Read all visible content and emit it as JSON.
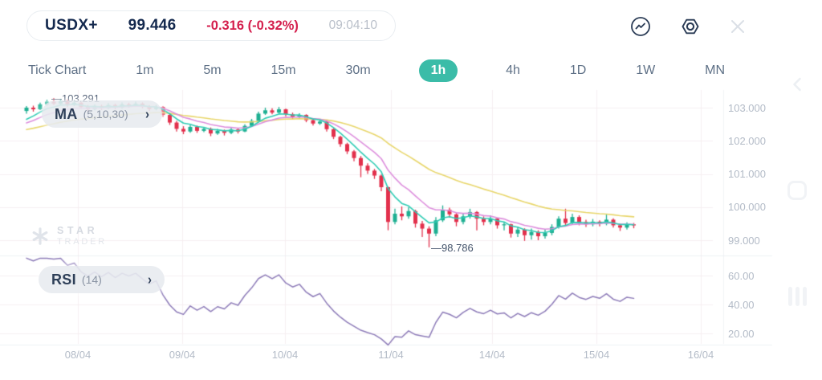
{
  "header": {
    "symbol": "USDX+",
    "price": "99.446",
    "change": "-0.316 (-0.32%)",
    "time": "09:04:10",
    "change_color": "#D41F4D"
  },
  "toolbar": {
    "timeframes": [
      "Tick Chart",
      "1m",
      "5m",
      "15m",
      "30m",
      "1h",
      "4h",
      "1D",
      "1W",
      "MN"
    ],
    "active": "1h",
    "active_color": "#3BBCA8"
  },
  "indicators": {
    "ma": {
      "label": "MA",
      "params": "(5,10,30)",
      "chevron": "›"
    },
    "rsi": {
      "label": "RSI",
      "params": "(14)",
      "chevron": "›"
    }
  },
  "watermark": {
    "line1": "STAR",
    "line2": "TRADER"
  },
  "chart_data": {
    "type": "candlestick",
    "symbol": "USDX+",
    "timeframe": "1h",
    "title": "USDX+ 1h candlestick chart with MA(5,10,30) and RSI(14)",
    "high_label": "—103.291",
    "low_label": "—98.786",
    "high_value": 103.291,
    "low_value": 98.786,
    "price_axis_labels": [
      "103.000",
      "102.000",
      "101.000",
      "100.000",
      "99.000"
    ],
    "price_axis_values": [
      103,
      102,
      101,
      100,
      99
    ],
    "rsi_axis_labels": [
      "60.00",
      "40.00",
      "20.00"
    ],
    "rsi_axis_values": [
      60,
      40,
      20
    ],
    "dates": [
      "08/04",
      "09/04",
      "10/04",
      "11/04",
      "14/04",
      "15/04",
      "16/04"
    ],
    "ma_periods": [
      5,
      10,
      30
    ],
    "rsi_period": 14,
    "grid_on": true,
    "colors": {
      "up": "#1EAF92",
      "down": "#E2304C",
      "ma5": "#2FCCB4",
      "ma10": "#DD8FDD",
      "ma30": "#E8D66B",
      "rsi": "#8D7BB8",
      "grid": "#F6EFF2",
      "separator": "#EDF0F4",
      "axis_line": "#F1F3F6"
    },
    "pre_closes": [
      101.95,
      102.05,
      101.98,
      102.1,
      102.02,
      102.14,
      102.06,
      102.18,
      102.1,
      102.22,
      102.14,
      102.26,
      102.18,
      102.3,
      102.22,
      102.34,
      102.26,
      102.38,
      102.3,
      102.42,
      102.34,
      102.44,
      102.36,
      102.46,
      102.4,
      102.48,
      102.42,
      102.5,
      102.44,
      102.52
    ],
    "candles": [
      [
        102.9,
        103.05,
        102.82,
        103.0
      ],
      [
        103.0,
        103.06,
        102.88,
        102.95
      ],
      [
        102.95,
        103.15,
        102.93,
        103.1
      ],
      [
        103.1,
        103.24,
        103.06,
        103.18
      ],
      [
        103.18,
        103.291,
        103.08,
        103.12
      ],
      [
        103.12,
        103.26,
        103.08,
        103.2
      ],
      [
        103.2,
        103.24,
        103.02,
        103.08
      ],
      [
        103.08,
        103.22,
        103.05,
        103.15
      ],
      [
        103.15,
        103.18,
        102.96,
        103.02
      ],
      [
        103.02,
        103.08,
        102.88,
        102.95
      ],
      [
        102.95,
        103.1,
        102.92,
        103.05
      ],
      [
        103.05,
        103.09,
        102.93,
        102.98
      ],
      [
        102.98,
        103.14,
        102.96,
        103.08
      ],
      [
        103.08,
        103.12,
        102.95,
        103.0
      ],
      [
        103.0,
        103.16,
        102.97,
        103.1
      ],
      [
        103.1,
        103.15,
        103.0,
        103.06
      ],
      [
        103.06,
        103.18,
        103.03,
        103.12
      ],
      [
        103.12,
        103.16,
        102.98,
        103.04
      ],
      [
        103.04,
        103.08,
        102.9,
        102.96
      ],
      [
        102.96,
        103.08,
        102.92,
        103.02
      ],
      [
        103.02,
        103.04,
        102.72,
        102.78
      ],
      [
        102.78,
        102.82,
        102.48,
        102.55
      ],
      [
        102.55,
        102.6,
        102.28,
        102.36
      ],
      [
        102.36,
        102.44,
        102.2,
        102.28
      ],
      [
        102.28,
        102.48,
        102.24,
        102.42
      ],
      [
        102.42,
        102.46,
        102.24,
        102.3
      ],
      [
        102.3,
        102.42,
        102.26,
        102.36
      ],
      [
        102.36,
        102.4,
        102.14,
        102.22
      ],
      [
        102.22,
        102.36,
        102.18,
        102.3
      ],
      [
        102.3,
        102.34,
        102.16,
        102.24
      ],
      [
        102.24,
        102.4,
        102.2,
        102.34
      ],
      [
        102.34,
        102.38,
        102.22,
        102.28
      ],
      [
        102.28,
        102.5,
        102.26,
        102.45
      ],
      [
        102.45,
        102.66,
        102.42,
        102.6
      ],
      [
        102.6,
        102.88,
        102.56,
        102.82
      ],
      [
        102.82,
        103.0,
        102.78,
        102.92
      ],
      [
        102.92,
        102.98,
        102.8,
        102.85
      ],
      [
        102.85,
        103.02,
        102.82,
        102.95
      ],
      [
        102.95,
        102.97,
        102.74,
        102.8
      ],
      [
        102.8,
        102.85,
        102.66,
        102.72
      ],
      [
        102.72,
        102.83,
        102.68,
        102.78
      ],
      [
        102.78,
        102.8,
        102.56,
        102.62
      ],
      [
        102.62,
        102.66,
        102.46,
        102.52
      ],
      [
        102.52,
        102.63,
        102.48,
        102.58
      ],
      [
        102.58,
        102.6,
        102.28,
        102.35
      ],
      [
        102.35,
        102.38,
        102.05,
        102.12
      ],
      [
        102.12,
        102.15,
        101.82,
        101.9
      ],
      [
        101.9,
        101.94,
        101.6,
        101.68
      ],
      [
        101.68,
        101.72,
        101.38,
        101.48
      ],
      [
        101.48,
        101.54,
        100.9,
        101.25
      ],
      [
        101.25,
        101.32,
        101.0,
        101.1
      ],
      [
        101.1,
        101.15,
        100.85,
        100.95
      ],
      [
        100.95,
        100.98,
        100.48,
        100.6
      ],
      [
        100.6,
        100.62,
        99.3,
        99.55
      ],
      [
        99.55,
        99.95,
        99.48,
        99.8
      ],
      [
        99.8,
        100.02,
        99.6,
        99.72
      ],
      [
        99.72,
        100.0,
        99.65,
        99.88
      ],
      [
        99.88,
        99.92,
        99.38,
        99.5
      ],
      [
        99.5,
        99.58,
        99.1,
        99.35
      ],
      [
        99.35,
        99.42,
        98.786,
        99.2
      ],
      [
        99.2,
        99.7,
        99.12,
        99.6
      ],
      [
        99.6,
        100.05,
        99.55,
        99.92
      ],
      [
        99.92,
        99.98,
        99.68,
        99.78
      ],
      [
        99.78,
        99.82,
        99.42,
        99.55
      ],
      [
        99.55,
        99.8,
        99.48,
        99.72
      ],
      [
        99.72,
        99.95,
        99.65,
        99.85
      ],
      [
        99.85,
        99.88,
        99.3,
        99.65
      ],
      [
        99.65,
        99.72,
        99.45,
        99.55
      ],
      [
        99.55,
        99.75,
        99.48,
        99.65
      ],
      [
        99.65,
        99.68,
        99.35,
        99.45
      ],
      [
        99.45,
        99.55,
        99.3,
        99.48
      ],
      [
        99.48,
        99.5,
        99.08,
        99.2
      ],
      [
        99.2,
        99.4,
        99.1,
        99.32
      ],
      [
        99.32,
        99.36,
        98.98,
        99.15
      ],
      [
        99.15,
        99.35,
        99.02,
        99.25
      ],
      [
        99.25,
        99.3,
        99.0,
        99.12
      ],
      [
        99.12,
        99.32,
        99.05,
        99.22
      ],
      [
        99.22,
        99.48,
        99.15,
        99.4
      ],
      [
        99.4,
        99.72,
        99.35,
        99.65
      ],
      [
        99.65,
        99.95,
        99.45,
        99.52
      ],
      [
        99.52,
        99.8,
        99.48,
        99.7
      ],
      [
        99.7,
        99.75,
        99.45,
        99.55
      ],
      [
        99.55,
        99.62,
        99.4,
        99.48
      ],
      [
        99.48,
        99.64,
        99.42,
        99.56
      ],
      [
        99.56,
        99.6,
        99.42,
        99.5
      ],
      [
        99.5,
        99.78,
        99.45,
        99.62
      ],
      [
        99.62,
        99.66,
        99.38,
        99.45
      ],
      [
        99.45,
        99.5,
        99.28,
        99.38
      ],
      [
        99.38,
        99.54,
        99.32,
        99.48
      ],
      [
        99.48,
        99.52,
        99.36,
        99.446
      ]
    ]
  }
}
